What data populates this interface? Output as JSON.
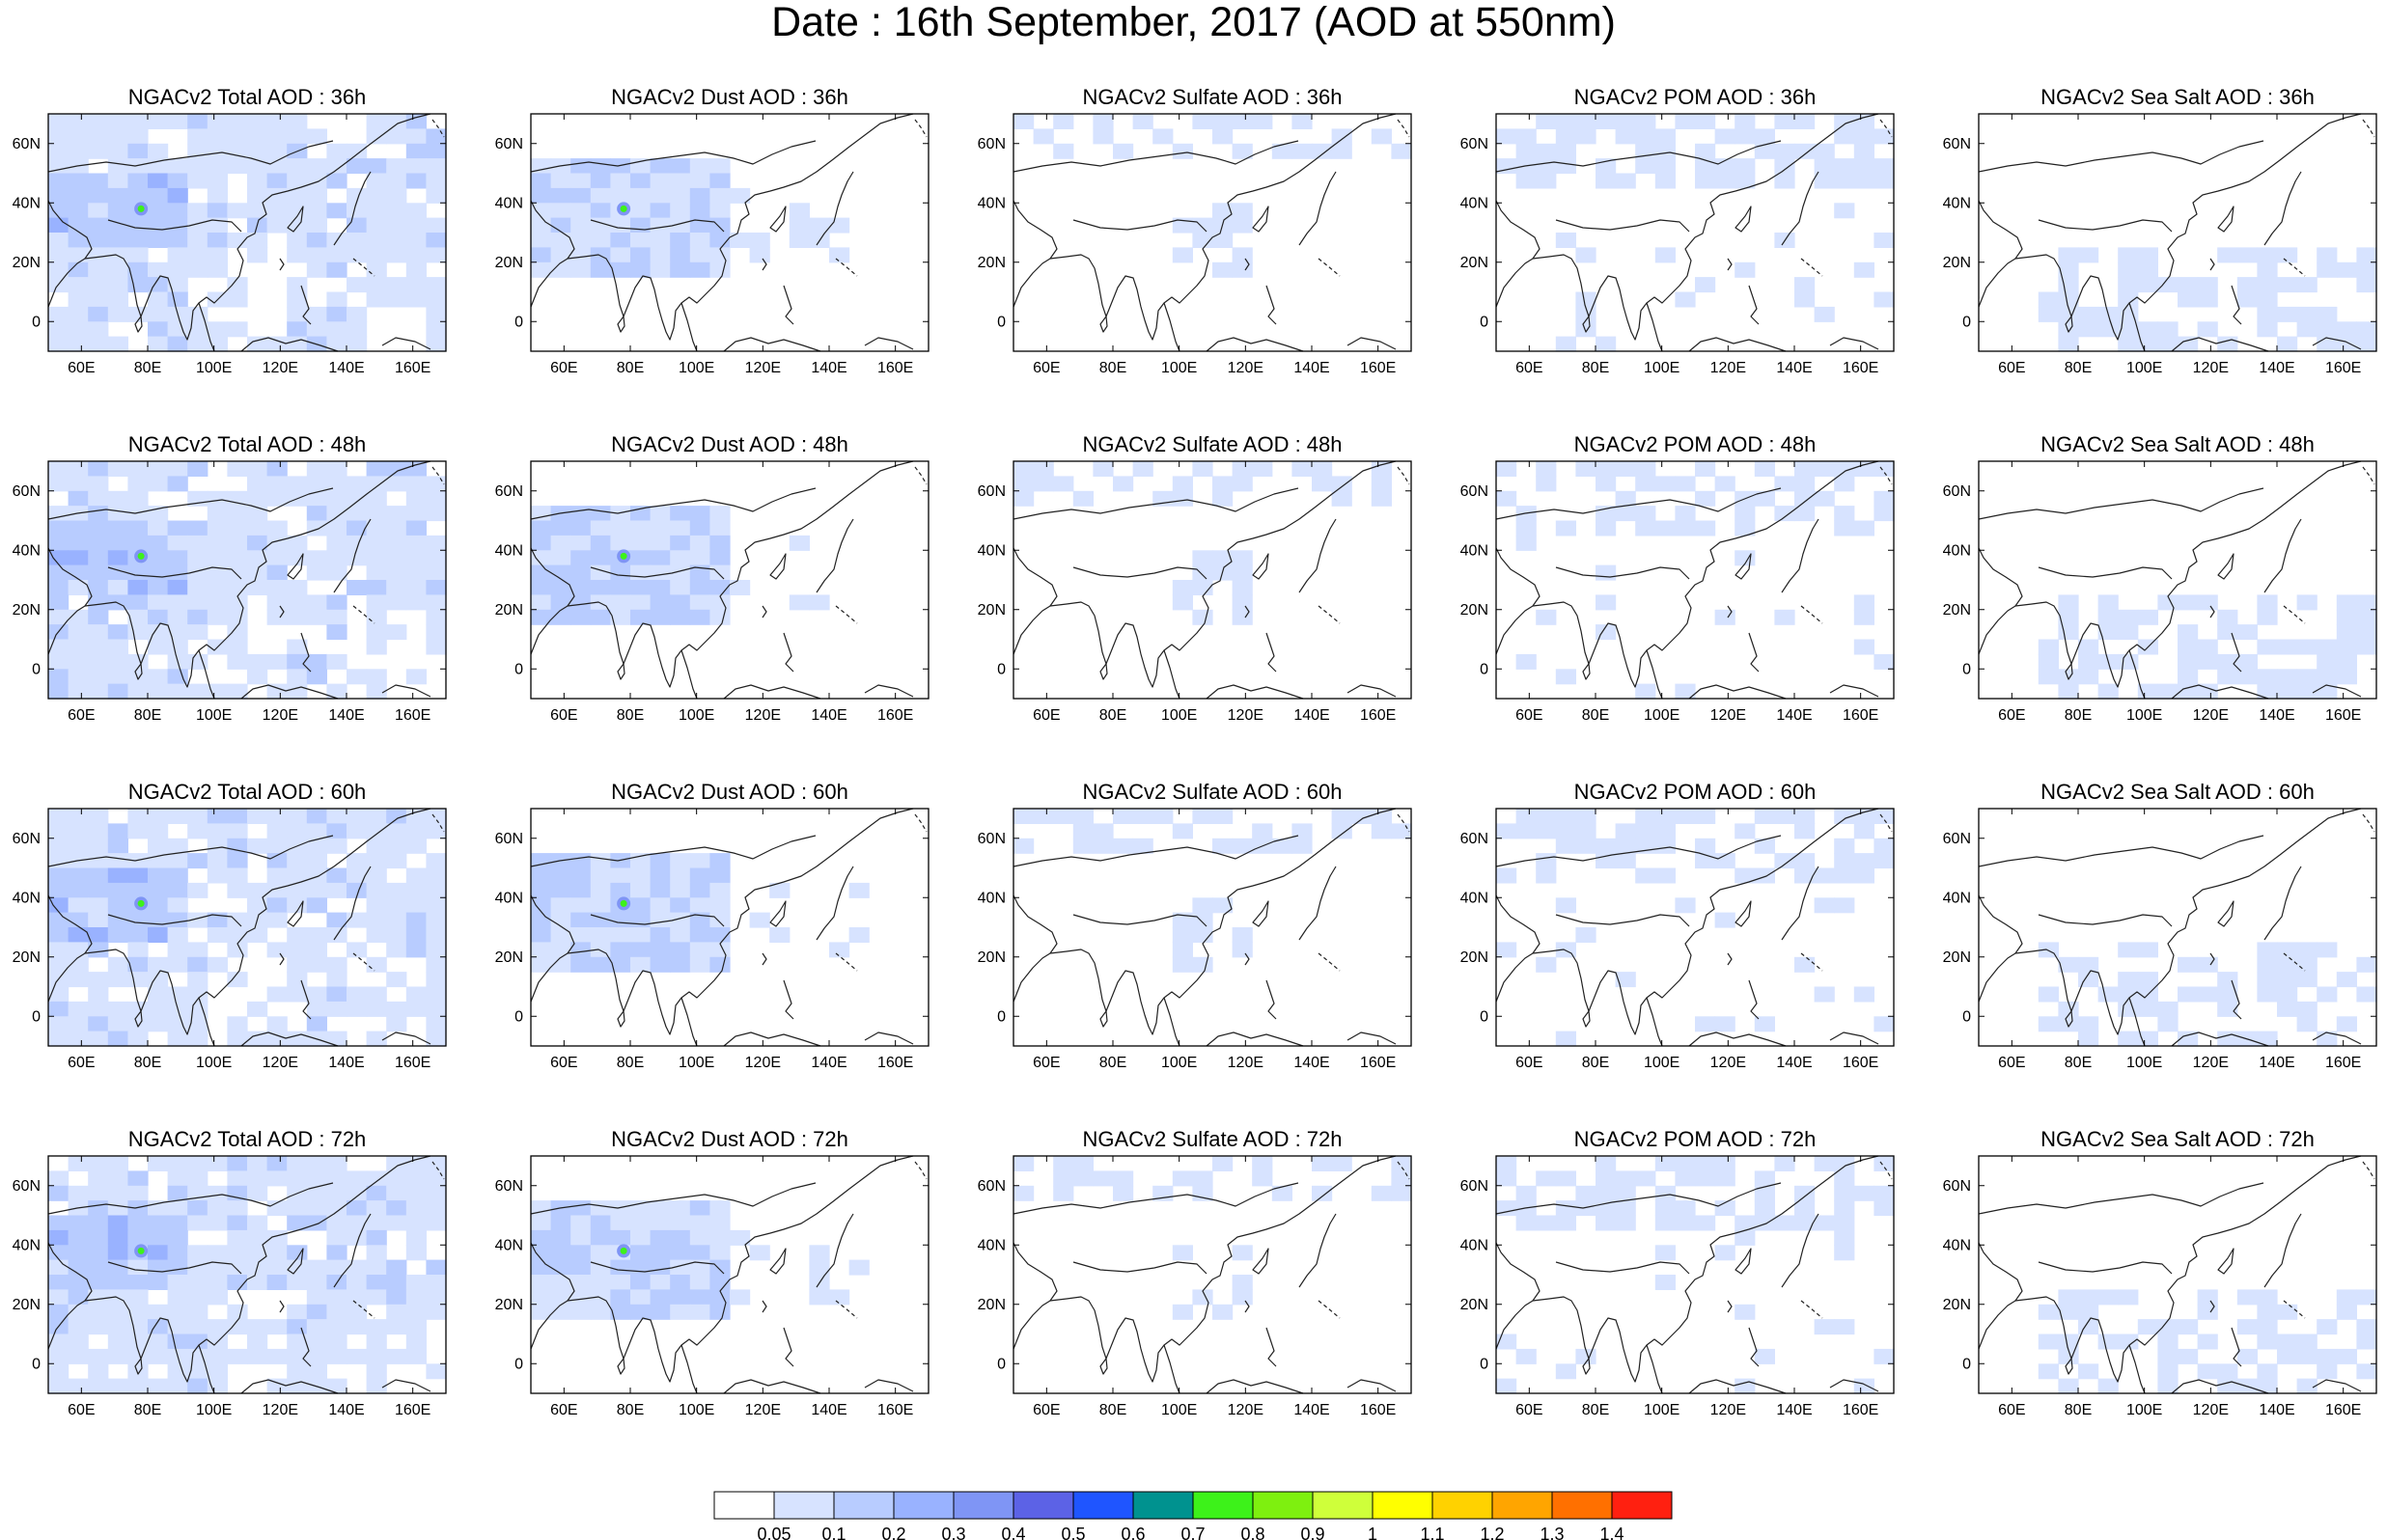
{
  "title": "Date : 16th September, 2017 (AOD at 550nm)",
  "panels": [
    [
      "NGACv2 Total AOD : 36h",
      "NGACv2 Dust AOD : 36h",
      "NGACv2 Sulfate AOD : 36h",
      "NGACv2 POM AOD : 36h",
      "NGACv2 Sea Salt AOD : 36h"
    ],
    [
      "NGACv2 Total AOD : 48h",
      "NGACv2 Dust AOD : 48h",
      "NGACv2 Sulfate AOD : 48h",
      "NGACv2 POM AOD : 48h",
      "NGACv2 Sea Salt AOD : 48h"
    ],
    [
      "NGACv2 Total AOD : 60h",
      "NGACv2 Dust AOD : 60h",
      "NGACv2 Sulfate AOD : 60h",
      "NGACv2 POM AOD : 60h",
      "NGACv2 Sea Salt AOD : 60h"
    ],
    [
      "NGACv2 Total AOD : 72h",
      "NGACv2 Dust AOD : 72h",
      "NGACv2 Sulfate AOD : 72h",
      "NGACv2 POM AOD : 72h",
      "NGACv2 Sea Salt  AOD : 72h"
    ]
  ],
  "x_ticks": [
    "60E",
    "80E",
    "100E",
    "120E",
    "140E",
    "160E"
  ],
  "x_tick_values": [
    60,
    80,
    100,
    120,
    140,
    160
  ],
  "y_ticks": [
    "60N",
    "40N",
    "20N",
    "0"
  ],
  "y_tick_values": [
    60,
    40,
    20,
    0
  ],
  "lon_range": [
    50,
    170
  ],
  "lat_range": [
    -10,
    70
  ],
  "colorbar": {
    "labels": [
      "0.05",
      "0.1",
      "0.2",
      "0.3",
      "0.4",
      "0.5",
      "0.6",
      "0.7",
      "0.8",
      "0.9",
      "1",
      "1.1",
      "1.2",
      "1.3",
      "1.4"
    ],
    "colors": [
      "#ffffff",
      "#d7e3ff",
      "#b8ccff",
      "#99b2ff",
      "#7f95f5",
      "#5c62e6",
      "#1f55ff",
      "#00928f",
      "#3df21a",
      "#7ef00f",
      "#cfff3a",
      "#ffff00",
      "#ffd200",
      "#ffa500",
      "#ff7000",
      "#ff2010"
    ]
  }
}
